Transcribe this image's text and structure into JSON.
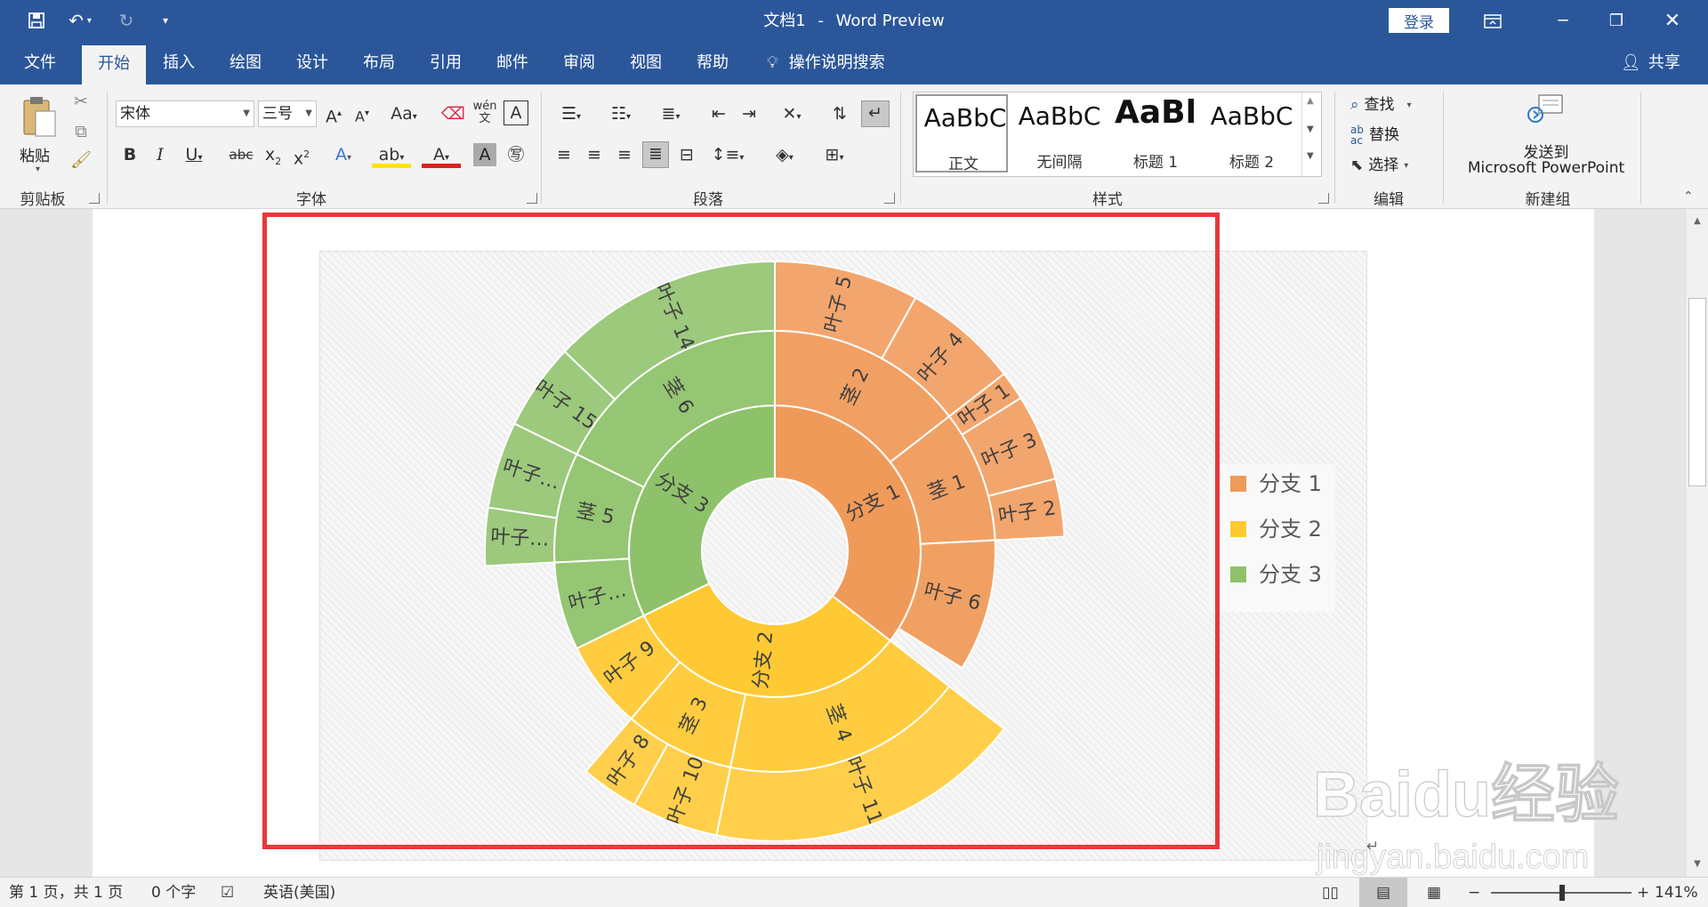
{
  "titlebar": {
    "doc_name": "文档1",
    "separator": "-",
    "app_name": "Word Preview",
    "login_label": "登录"
  },
  "tabs": [
    {
      "label": "文件"
    },
    {
      "label": "开始",
      "active": true
    },
    {
      "label": "插入"
    },
    {
      "label": "绘图"
    },
    {
      "label": "设计"
    },
    {
      "label": "布局"
    },
    {
      "label": "引用"
    },
    {
      "label": "邮件"
    },
    {
      "label": "审阅"
    },
    {
      "label": "视图"
    },
    {
      "label": "帮助"
    }
  ],
  "tell_me": "操作说明搜索",
  "share": "共享",
  "ribbon": {
    "clipboard": {
      "paste_label": "粘贴",
      "group_label": "剪贴板"
    },
    "font": {
      "font_name": "宋体",
      "font_size": "三号",
      "group_label": "字体"
    },
    "paragraph": {
      "group_label": "段落"
    },
    "styles": {
      "group_label": "样式",
      "items": [
        {
          "sample": "AaBbC",
          "name": "正文"
        },
        {
          "sample": "AaBbC",
          "name": "无间隔"
        },
        {
          "sample": "AaBl",
          "name": "标题 1"
        },
        {
          "sample": "AaBbC",
          "name": "标题 2"
        }
      ]
    },
    "editing": {
      "find": "查找",
      "replace": "替换",
      "select": "选择",
      "group_label": "编辑"
    },
    "newgroup": {
      "send_to": "发送到",
      "app": "Microsoft PowerPoint",
      "group_label": "新建组"
    }
  },
  "chart_data": {
    "type": "sunburst",
    "title": "",
    "colors": {
      "分支 1": "#f09a5a",
      "分支 2": "#ffc933",
      "分支 3": "#8ec26a"
    },
    "legend": [
      "分支 1",
      "分支 2",
      "分支 3"
    ],
    "legend_position": "right",
    "series": [
      {
        "name": "分支 1",
        "value": 22,
        "children": [
          {
            "name": "茎 2",
            "value": 9,
            "children": [
              {
                "name": "叶子 5",
                "value": 5
              },
              {
                "name": "叶子 4",
                "value": 4
              }
            ]
          },
          {
            "name": "茎 1",
            "value": 6,
            "children": [
              {
                "name": "叶子 1",
                "value": 1
              },
              {
                "name": "叶子 3",
                "value": 3
              },
              {
                "name": "叶子 2",
                "value": 2
              }
            ]
          },
          {
            "name": "叶子 6",
            "value": 6
          }
        ]
      },
      {
        "name": "分支 2",
        "value": 20,
        "children": [
          {
            "name": "茎 4",
            "value": 11,
            "children": [
              {
                "name": "叶子 11",
                "value": 11
              }
            ]
          },
          {
            "name": "茎 3",
            "value": 5,
            "children": [
              {
                "name": "叶子 10",
                "value": 3
              },
              {
                "name": "叶子 8",
                "value": 2
              }
            ]
          },
          {
            "name": "叶子 9",
            "value": 4
          }
        ]
      },
      {
        "name": "分支 3",
        "value": 20,
        "children": [
          {
            "name": "叶子…",
            "value": 4
          },
          {
            "name": "茎 5",
            "value": 5,
            "children": [
              {
                "name": "叶子…",
                "value": 2
              },
              {
                "name": "叶子…",
                "value": 3
              }
            ]
          },
          {
            "name": "茎 6",
            "value": 11,
            "children": [
              {
                "name": "叶子 15",
                "value": 3
              },
              {
                "name": "叶子 14",
                "value": 8
              }
            ]
          }
        ]
      }
    ]
  },
  "watermark": {
    "brand": "Baidu经验",
    "url": "jingyan.baidu.com"
  },
  "statusbar": {
    "page": "第 1 页，共 1 页",
    "words": "0 个字",
    "language": "英语(美国)",
    "zoom": "141%"
  }
}
